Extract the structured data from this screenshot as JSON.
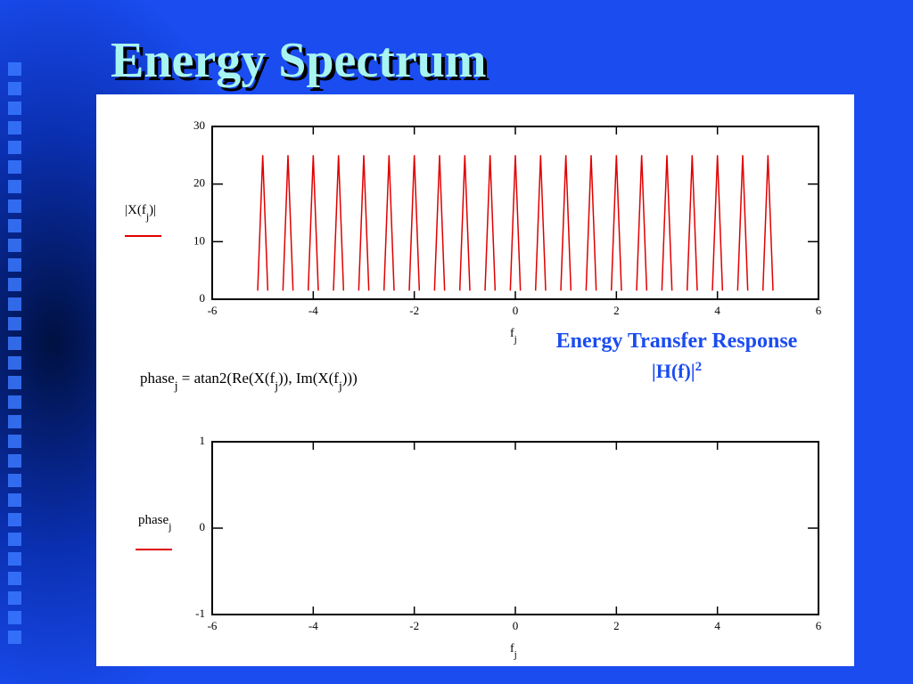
{
  "title": "Energy Spectrum",
  "formula": [
    "phase",
    "j",
    " = atan2(Re(X(f",
    "j",
    ")), Im(X(f",
    "j",
    ")))"
  ],
  "annotation": [
    "Energy Transfer Response",
    "|H(f)|",
    "2"
  ],
  "chart_data": [
    {
      "type": "line",
      "ylabel": [
        "|X(f",
        "j",
        ")|"
      ],
      "xlabel": [
        "f",
        "j"
      ],
      "xlim": [
        -6,
        6
      ],
      "xticks": [
        -6,
        -4,
        -2,
        0,
        2,
        4,
        6
      ],
      "ylim": [
        0,
        30
      ],
      "yticks": [
        0,
        10,
        20,
        30
      ],
      "series": [
        {
          "color": "#e00000",
          "x": [
            -5.1,
            -5,
            -4.9,
            -4.75,
            -4.6,
            -4.5,
            -4.4,
            -4.25,
            -4.1,
            -4,
            -3.9,
            -3.75,
            -3.6,
            -3.5,
            -3.4,
            -3.25,
            -3.1,
            -3,
            -2.9,
            -2.75,
            -2.6,
            -2.5,
            -2.4,
            -2.25,
            -2.1,
            -2,
            -1.9,
            -1.75,
            -1.6,
            -1.5,
            -1.4,
            -1.25,
            -1.1,
            -1,
            -0.9,
            -0.75,
            -0.6,
            -0.5,
            -0.4,
            -0.25,
            -0.1,
            0,
            0.1,
            0.25,
            0.4,
            0.5,
            0.6,
            0.75,
            0.9,
            1,
            1.1,
            1.25,
            1.4,
            1.5,
            1.6,
            1.75,
            1.9,
            2,
            2.1,
            2.25,
            2.4,
            2.5,
            2.6,
            2.75,
            2.9,
            3,
            3.1,
            3.25,
            3.4,
            3.5,
            3.6,
            3.75,
            3.9,
            4,
            4.1,
            4.25,
            4.4,
            4.5,
            4.6,
            4.75,
            4.9,
            5,
            5.1
          ],
          "values": [
            1.5,
            25,
            1.5,
            null,
            1.5,
            25,
            1.5,
            null,
            1.5,
            25,
            1.5,
            null,
            1.5,
            25,
            1.5,
            null,
            1.5,
            25,
            1.5,
            null,
            1.5,
            25,
            1.5,
            null,
            1.5,
            25,
            1.5,
            null,
            1.5,
            25,
            1.5,
            null,
            1.5,
            25,
            1.5,
            null,
            1.5,
            25,
            1.5,
            null,
            1.5,
            25,
            1.5,
            null,
            1.5,
            25,
            1.5,
            null,
            1.5,
            25,
            1.5,
            null,
            1.5,
            25,
            1.5,
            null,
            1.5,
            25,
            1.5,
            null,
            1.5,
            25,
            1.5,
            null,
            1.5,
            25,
            1.5,
            null,
            1.5,
            25,
            1.5,
            null,
            1.5,
            25,
            1.5,
            null,
            1.5,
            25,
            1.5,
            null,
            1.5,
            25,
            1.5
          ]
        }
      ]
    },
    {
      "type": "line",
      "ylabel": [
        "phase",
        "j"
      ],
      "xlabel": [
        "f",
        "j"
      ],
      "color": "#e00000",
      "xlim": [
        -6,
        6
      ],
      "xticks": [
        -6,
        -4,
        -2,
        0,
        2,
        4,
        6
      ],
      "ylim": [
        -1,
        1
      ],
      "yticks": [
        -1,
        0,
        1
      ],
      "series": []
    }
  ]
}
